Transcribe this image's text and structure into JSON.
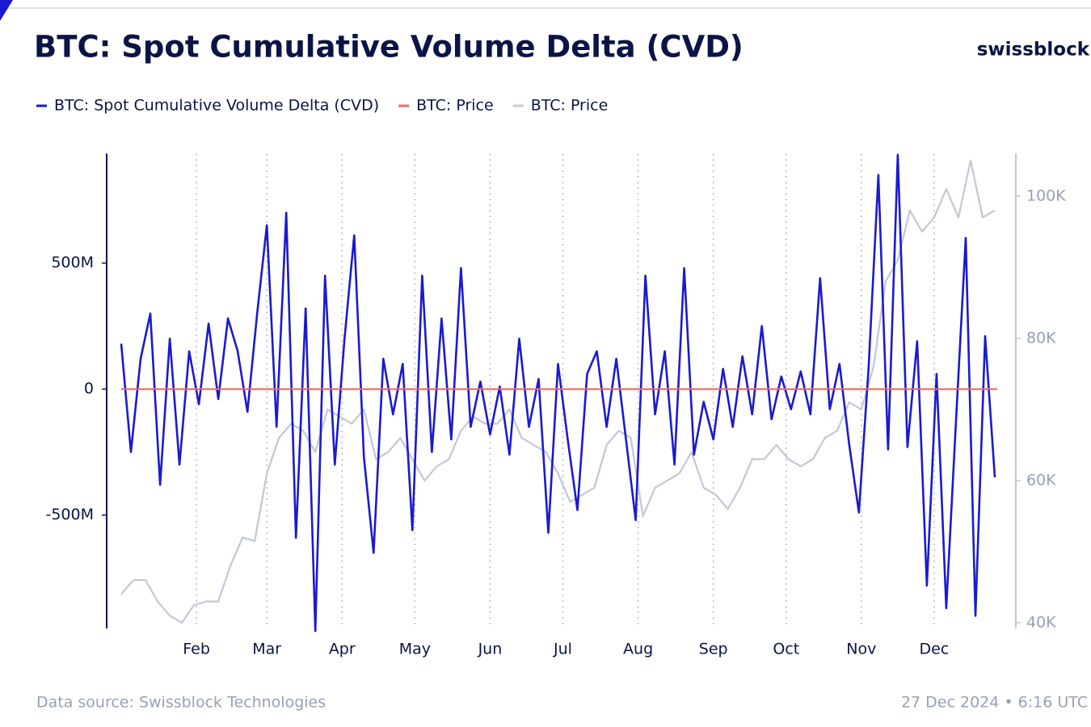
{
  "chart_data": {
    "type": "line",
    "title": "BTC: Spot Cumulative Volume Delta (CVD)",
    "brand": "swissblock",
    "source": "Data source: Swissblock Technologies",
    "timestamp": "27 Dec 2024 • 6:16 UTC",
    "xlim": [
      -5,
      364
    ],
    "xticks": [
      {
        "value": 32,
        "label": "Feb"
      },
      {
        "value": 61,
        "label": "Mar"
      },
      {
        "value": 92,
        "label": "Apr"
      },
      {
        "value": 122,
        "label": "May"
      },
      {
        "value": 153,
        "label": "Jun"
      },
      {
        "value": 183,
        "label": "Jul"
      },
      {
        "value": 214,
        "label": "Aug"
      },
      {
        "value": 245,
        "label": "Sep"
      },
      {
        "value": 275,
        "label": "Oct"
      },
      {
        "value": 306,
        "label": "Nov"
      },
      {
        "value": 336,
        "label": "Dec"
      }
    ],
    "ylim": [
      -950,
      935
    ],
    "yticks": [
      {
        "value": -500,
        "label": "-500M"
      },
      0,
      {
        "value": 500,
        "label": "500M"
      }
    ],
    "y2lim": [
      39.2,
      106
    ],
    "y2ticks": [
      {
        "value": 40,
        "label": "40K"
      },
      {
        "value": 60,
        "label": "60K"
      },
      {
        "value": 80,
        "label": "80K"
      },
      {
        "value": 100,
        "label": "100K"
      }
    ],
    "x_grid": true,
    "series": [
      {
        "name": "BTC: Spot Cumulative Volume Delta (CVD)",
        "color": "#1a1ad0",
        "x": [
          1,
          5,
          9,
          13,
          17,
          21,
          25,
          29,
          33,
          37,
          41,
          45,
          49,
          53,
          57,
          61,
          65,
          69,
          73,
          77,
          81,
          85,
          89,
          93,
          97,
          101,
          105,
          109,
          113,
          117,
          121,
          125,
          129,
          133,
          137,
          141,
          145,
          149,
          153,
          157,
          161,
          165,
          169,
          173,
          177,
          181,
          185,
          189,
          193,
          197,
          201,
          205,
          209,
          213,
          217,
          221,
          225,
          229,
          233,
          237,
          241,
          245,
          249,
          253,
          257,
          261,
          265,
          269,
          273,
          277,
          281,
          285,
          289,
          293,
          297,
          301,
          305,
          309,
          313,
          317,
          321,
          325,
          329,
          333,
          337,
          341,
          345,
          349,
          353,
          357,
          361
        ],
        "values": [
          180,
          -250,
          120,
          300,
          -380,
          200,
          -300,
          150,
          -60,
          260,
          -40,
          280,
          150,
          -90,
          300,
          650,
          -150,
          700,
          -590,
          320,
          -960,
          450,
          -300,
          200,
          610,
          -270,
          -650,
          120,
          -100,
          100,
          -560,
          450,
          -250,
          280,
          -200,
          480,
          -150,
          30,
          -180,
          10,
          -260,
          200,
          -150,
          40,
          -570,
          100,
          -200,
          -480,
          60,
          150,
          -150,
          120,
          -200,
          -520,
          450,
          -100,
          150,
          -300,
          480,
          -260,
          -50,
          -200,
          80,
          -150,
          130,
          -100,
          250,
          -120,
          50,
          -80,
          70,
          -100,
          440,
          -80,
          100,
          -220,
          -490,
          90,
          850,
          -240,
          930,
          -230,
          190,
          -780,
          60,
          -870,
          -130,
          600,
          -900,
          210,
          -350
        ]
      },
      {
        "name": "BTC: Price",
        "color": "#f0685f",
        "x": [
          1,
          362
        ],
        "values": [
          0,
          0
        ]
      },
      {
        "name": "BTC: Price",
        "color": "#c3c7d6",
        "axis": "y2",
        "x": [
          1,
          6,
          11,
          16,
          21,
          26,
          31,
          36,
          41,
          46,
          51,
          56,
          61,
          66,
          71,
          76,
          81,
          86,
          91,
          96,
          101,
          106,
          111,
          116,
          121,
          126,
          131,
          136,
          141,
          146,
          151,
          156,
          161,
          166,
          171,
          176,
          181,
          186,
          191,
          196,
          201,
          206,
          211,
          216,
          221,
          226,
          231,
          236,
          241,
          246,
          251,
          256,
          261,
          266,
          271,
          276,
          281,
          286,
          291,
          296,
          301,
          306,
          311,
          316,
          321,
          326,
          331,
          336,
          341,
          346,
          351,
          356,
          361
        ],
        "values": [
          44,
          46,
          46,
          43,
          41,
          40,
          42.5,
          43,
          43,
          48,
          52,
          51.5,
          61,
          66,
          68,
          67,
          64,
          70,
          69,
          68,
          70,
          63,
          64,
          66,
          63,
          60,
          62,
          63,
          67,
          69,
          68,
          68,
          70,
          66,
          65,
          64,
          61,
          57,
          58,
          59,
          65,
          67,
          66,
          55,
          59,
          60,
          61,
          64,
          59,
          58,
          56,
          59,
          63,
          63,
          65,
          63,
          62,
          63,
          66,
          67,
          71,
          70,
          76,
          88,
          91,
          98,
          95,
          97,
          101,
          97,
          105,
          97,
          98
        ]
      }
    ]
  }
}
